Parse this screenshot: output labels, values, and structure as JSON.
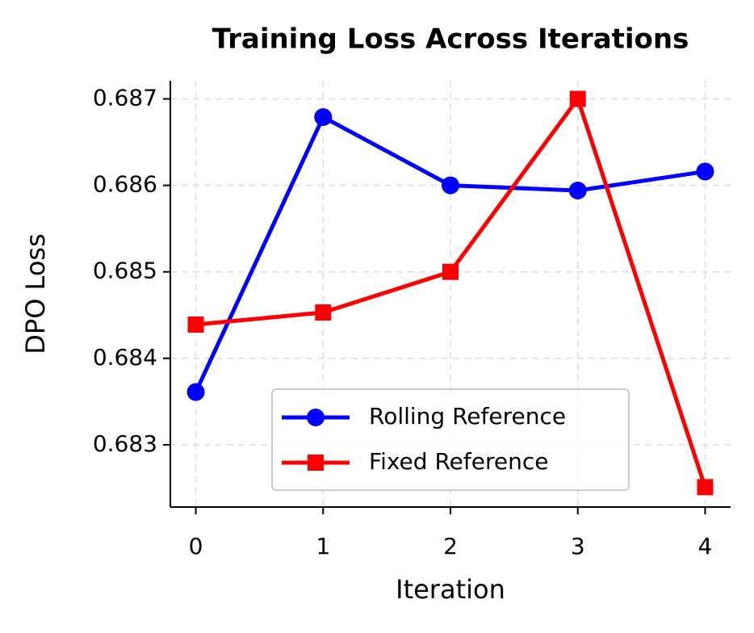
{
  "chart_data": {
    "type": "line",
    "title": "Training Loss Across Iterations",
    "x_label": "Iteration",
    "y_label": "DPO Loss",
    "x": [
      0,
      1,
      2,
      3,
      4
    ],
    "series": [
      {
        "name": "Rolling Reference",
        "color": "#0000ff",
        "marker": "circle",
        "values": [
          0.68361,
          0.68679,
          0.686,
          0.68594,
          0.68616
        ]
      },
      {
        "name": "Fixed Reference",
        "color": "#ff0000",
        "marker": "square",
        "values": [
          0.68439,
          0.68453,
          0.685,
          0.687,
          0.68251
        ]
      }
    ],
    "xlim": [
      -0.2,
      4.2
    ],
    "xticks": [
      0,
      1,
      2,
      3,
      4
    ],
    "ylim": [
      0.68228,
      0.68721
    ],
    "yticks": [
      0.683,
      0.684,
      0.685,
      0.686,
      0.687
    ],
    "grid": true,
    "legend": "lower center"
  }
}
